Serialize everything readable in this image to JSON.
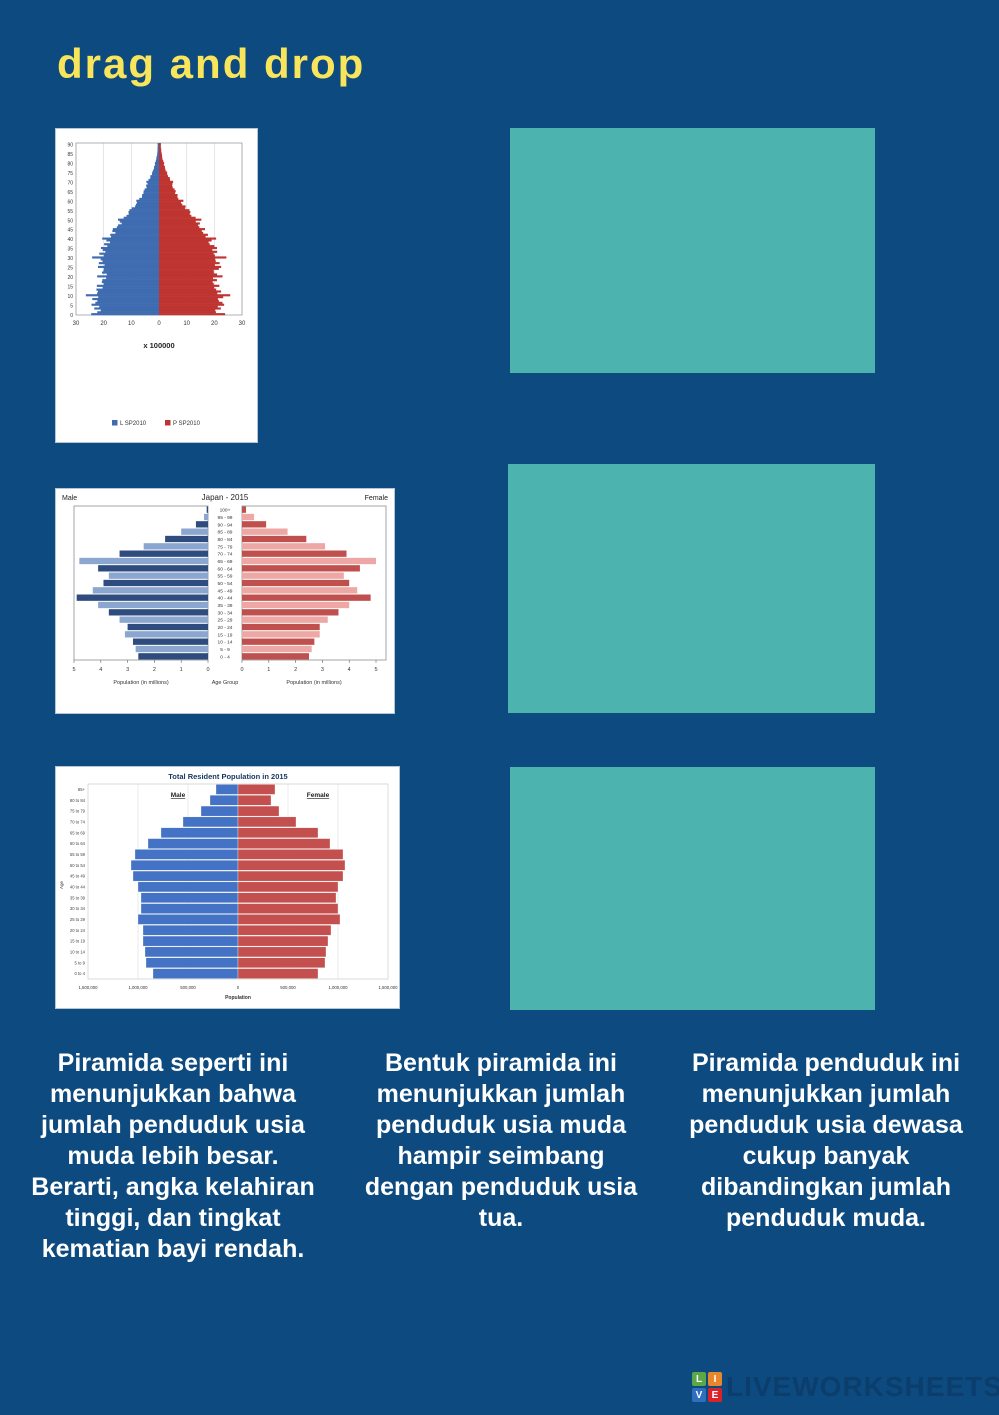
{
  "page": {
    "title": "drag and drop",
    "title_color": "#F8E55B",
    "background_color": "#0D4A7F"
  },
  "dropzones": {
    "color": "#4DB3AE",
    "count": 3
  },
  "answers": [
    {
      "text": "Piramida seperti ini\nmenunjukkan bahwa\njumlah penduduk usia\nmuda lebih besar.\nBerarti, angka kelahiran\ntinggi, dan tingkat\nkematian bayi rendah."
    },
    {
      "text": "Bentuk piramida ini\nmenunjukkan jumlah\npenduduk usia muda\nhampir seimbang\ndengan penduduk usia\ntua."
    },
    {
      "text": "Piramida penduduk ini\nmenunjukkan jumlah\npenduduk usia dewasa\ncukup banyak\ndibandingkan jumlah\npenduduk muda."
    }
  ],
  "watermark": {
    "text": "LIVEWORKSHEETS",
    "color": "#0B3E6C",
    "squares": [
      {
        "letter": "L",
        "color": "#5BA846"
      },
      {
        "letter": "I",
        "color": "#E8862B"
      },
      {
        "letter": "V",
        "color": "#2F6FBF"
      },
      {
        "letter": "E",
        "color": "#D8232A"
      }
    ]
  },
  "chart_data": [
    {
      "type": "bar",
      "subtype": "population-pyramid",
      "title": "",
      "xlabel": "x 100000",
      "xlim": [
        -30,
        30
      ],
      "x_ticks": [
        "30",
        "20",
        "10",
        "0",
        "10",
        "20",
        "30"
      ],
      "age_axis": {
        "min": 0,
        "max": 90,
        "tick_step": 5,
        "bar_step": 1
      },
      "anchor_ages": [
        0,
        5,
        10,
        15,
        20,
        25,
        30,
        35,
        40,
        45,
        50,
        55,
        60,
        65,
        70,
        75,
        80,
        85,
        90
      ],
      "series": [
        {
          "name": "L SP2010",
          "side": "left",
          "color": "#3F6CB0",
          "values": [
            21.5,
            22.8,
            23.2,
            21.0,
            19.6,
            20.6,
            21.2,
            19.6,
            18.0,
            15.6,
            13.0,
            10.0,
            7.2,
            5.2,
            4.0,
            2.3,
            1.3,
            0.6,
            0.45
          ]
        },
        {
          "name": "P SP2010",
          "side": "right",
          "color": "#BE3430",
          "values": [
            20.6,
            21.8,
            22.2,
            20.2,
            19.8,
            20.8,
            21.0,
            19.4,
            17.8,
            15.4,
            13.2,
            10.2,
            7.6,
            5.6,
            4.4,
            2.7,
            1.6,
            0.9,
            0.6
          ]
        }
      ],
      "legend": [
        "L SP2010",
        "P SP2010"
      ]
    },
    {
      "type": "bar",
      "subtype": "population-pyramid",
      "title": "Japan - 2015",
      "left_header": "Male",
      "right_header": "Female",
      "xlabel_left": "Population (in millions)",
      "xlabel_center": "Age Group",
      "xlabel_right": "Population (in millions)",
      "axis_max": 5,
      "x_ticks": [
        "0",
        "1",
        "2",
        "3",
        "4",
        "5"
      ],
      "categories_top_to_bottom": [
        "100+",
        "95 - 99",
        "90 - 94",
        "85 - 89",
        "80 - 84",
        "75 - 79",
        "70 - 74",
        "65 - 69",
        "60 - 64",
        "55 - 59",
        "50 - 54",
        "45 - 49",
        "40 - 44",
        "35 - 39",
        "30 - 34",
        "25 - 29",
        "20 - 24",
        "15 - 19",
        "10 - 14",
        "5 - 9",
        "0 - 4"
      ],
      "series": [
        {
          "name": "Male",
          "side": "left",
          "color_dark": "#2F4C7E",
          "color_light": "#8CA7CF",
          "values": [
            0.05,
            0.15,
            0.45,
            1.0,
            1.6,
            2.4,
            3.3,
            4.8,
            4.1,
            3.7,
            3.9,
            4.3,
            4.9,
            4.1,
            3.7,
            3.3,
            3.0,
            3.1,
            2.8,
            2.7,
            2.6
          ]
        },
        {
          "name": "Female",
          "side": "right",
          "color_dark": "#C0504D",
          "color_light": "#EDA8A5",
          "values": [
            0.15,
            0.45,
            0.9,
            1.7,
            2.4,
            3.1,
            3.9,
            5.0,
            4.4,
            3.8,
            4.0,
            4.3,
            4.8,
            4.0,
            3.6,
            3.2,
            2.9,
            2.9,
            2.7,
            2.6,
            2.5
          ]
        }
      ]
    },
    {
      "type": "bar",
      "subtype": "population-pyramid",
      "title": "Total Resident Population in 2015",
      "left_header": "Male",
      "right_header": "Female",
      "ylabel": "Age",
      "xlabel": "Population",
      "axis_max": 1.5,
      "x_tick_labels": [
        "1,500,000",
        "1,000,000",
        "500,000",
        "0",
        "500,000",
        "1,000,000",
        "1,500,000"
      ],
      "categories_top_to_bottom": [
        "85+",
        "80 to 84",
        "75 to 79",
        "70 to 74",
        "65 to 69",
        "60 to 64",
        "55 to 59",
        "50 to 54",
        "45 to 49",
        "40 to 44",
        "35 to 39",
        "30 to 34",
        "25 to 29",
        "20 to 24",
        "15 to 19",
        "10 to 14",
        "5 to 9",
        "0 to 4"
      ],
      "series": [
        {
          "name": "Male",
          "side": "left",
          "color": "#4472C4",
          "values": [
            0.22,
            0.28,
            0.37,
            0.55,
            0.77,
            0.9,
            1.03,
            1.07,
            1.05,
            1.0,
            0.97,
            0.97,
            1.0,
            0.95,
            0.95,
            0.93,
            0.92,
            0.85
          ]
        },
        {
          "name": "Female",
          "side": "right",
          "color": "#C3504E",
          "values": [
            0.37,
            0.33,
            0.41,
            0.58,
            0.8,
            0.92,
            1.05,
            1.07,
            1.05,
            1.0,
            0.98,
            1.0,
            1.02,
            0.93,
            0.9,
            0.88,
            0.87,
            0.8
          ]
        }
      ]
    }
  ]
}
